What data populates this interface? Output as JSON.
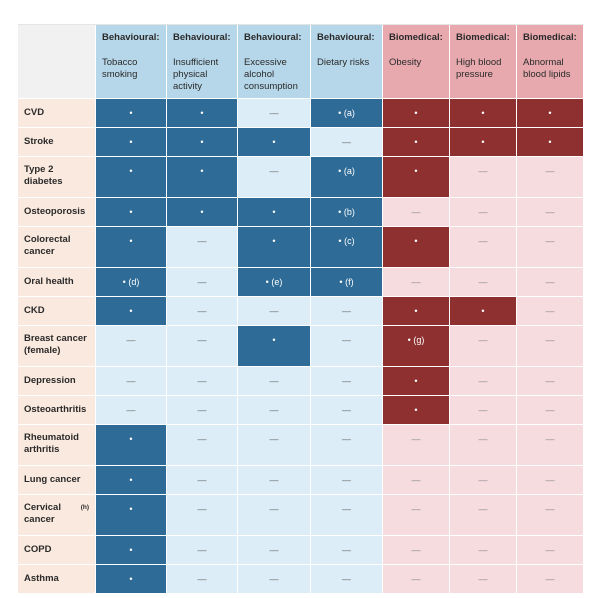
{
  "columns": [
    {
      "group": "Behavioural:",
      "title": "Tobacco smoking",
      "type": "beh"
    },
    {
      "group": "Behavioural:",
      "title": "Insufficient physical activity",
      "type": "beh"
    },
    {
      "group": "Behavioural:",
      "title": "Excessive alcohol consumption",
      "type": "beh"
    },
    {
      "group": "Behavioural:",
      "title": "Dietary risks",
      "type": "beh"
    },
    {
      "group": "Biomedical:",
      "title": "Obesity",
      "type": "bio"
    },
    {
      "group": "Biomedical:",
      "title": "High blood pressure",
      "type": "bio"
    },
    {
      "group": "Biomedical:",
      "title": "Abnormal blood lipids",
      "type": "bio"
    }
  ],
  "rows": [
    {
      "label": "CVD",
      "cells": [
        "•",
        "•",
        "—",
        "• (a)",
        "•",
        "•",
        "•"
      ]
    },
    {
      "label": "Stroke",
      "cells": [
        "•",
        "•",
        "•",
        "—",
        "•",
        "•",
        "•"
      ]
    },
    {
      "label": "Type 2 diabetes",
      "cells": [
        "•",
        "•",
        "—",
        "• (a)",
        "•",
        "—",
        "—"
      ]
    },
    {
      "label": "Osteoporosis",
      "cells": [
        "•",
        "•",
        "•",
        "• (b)",
        "—",
        "—",
        "—"
      ]
    },
    {
      "label": "Colorectal cancer",
      "cells": [
        "•",
        "—",
        "•",
        "• (c)",
        "•",
        "—",
        "—"
      ]
    },
    {
      "label": "Oral health",
      "cells": [
        "• (d)",
        "—",
        "• (e)",
        "• (f)",
        "—",
        "—",
        "—"
      ]
    },
    {
      "label": "CKD",
      "cells": [
        "•",
        "—",
        "—",
        "—",
        "•",
        "•",
        "—"
      ]
    },
    {
      "label": "Breast cancer (female)",
      "cells": [
        "—",
        "—",
        "•",
        "—",
        "• (g)",
        "—",
        "—"
      ]
    },
    {
      "label": "Depression",
      "cells": [
        "—",
        "—",
        "—",
        "—",
        "•",
        "—",
        "—"
      ]
    },
    {
      "label": "Osteoarthritis",
      "cells": [
        "—",
        "—",
        "—",
        "—",
        "•",
        "—",
        "—"
      ]
    },
    {
      "label": "Rheumatoid arthritis",
      "cells": [
        "•",
        "—",
        "—",
        "—",
        "—",
        "—",
        "—"
      ]
    },
    {
      "label": "Lung cancer",
      "cells": [
        "•",
        "—",
        "—",
        "—",
        "—",
        "—",
        "—"
      ]
    },
    {
      "label": "Cervical cancer",
      "label_sup": "(h)",
      "cells": [
        "•",
        "—",
        "—",
        "—",
        "—",
        "—",
        "—"
      ]
    },
    {
      "label": "COPD",
      "cells": [
        "•",
        "—",
        "—",
        "—",
        "—",
        "—",
        "—"
      ]
    },
    {
      "label": "Asthma",
      "cells": [
        "•",
        "—",
        "—",
        "—",
        "—",
        "—",
        "—"
      ]
    }
  ]
}
